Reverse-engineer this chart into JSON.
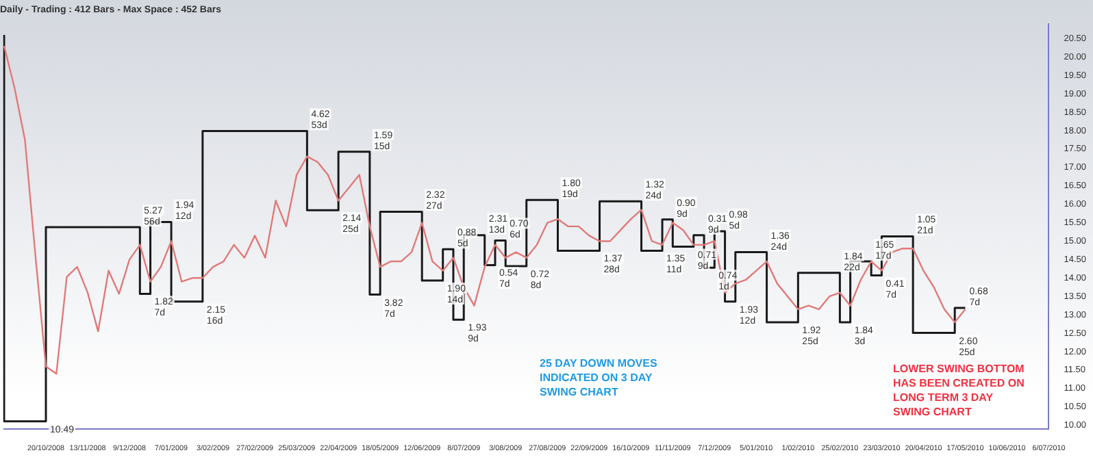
{
  "chart_data": {
    "type": "line",
    "title": "Daily - Trading : 412 Bars - Max Space : 452 Bars",
    "categories": [
      null,
      null,
      null,
      null,
      "20/10/2008",
      null,
      null,
      null,
      "13/11/2008",
      null,
      null,
      null,
      "9/12/2008",
      null,
      null,
      null,
      "7/01/2009",
      null,
      null,
      null,
      "3/02/2009",
      null,
      null,
      null,
      "27/02/2009",
      null,
      null,
      null,
      "25/03/2009",
      null,
      null,
      null,
      "22/04/2009",
      null,
      null,
      null,
      "18/05/2009",
      null,
      null,
      null,
      "12/06/2009",
      null,
      null,
      null,
      "8/07/2009",
      null,
      null,
      null,
      "3/08/2009",
      null,
      null,
      null,
      "27/08/2009",
      null,
      null,
      null,
      "22/09/2009",
      null,
      null,
      null,
      "16/10/2009",
      null,
      null,
      null,
      "11/11/2009",
      null,
      null,
      null,
      "7/12/2009",
      null,
      null,
      null,
      "5/01/2010",
      null,
      null,
      null,
      "1/02/2010",
      null,
      null,
      null,
      "25/02/2010",
      null,
      null,
      null,
      "23/03/2010",
      null,
      null,
      null,
      "20/04/2010",
      null,
      null,
      null,
      "17/05/2010",
      null,
      null,
      null,
      "10/06/2010",
      null,
      null,
      null,
      "6/07/2010"
    ],
    "series": [
      {
        "type": "line",
        "color": "#e07a7a",
        "values": [
          20.3,
          19.16,
          17.74,
          14.6,
          11.6,
          11.4,
          14.03,
          14.3,
          13.6,
          12.55,
          14.2,
          13.57,
          14.5,
          14.9,
          13.9,
          14.3,
          15.0,
          13.9,
          14.0,
          14.0,
          14.3,
          14.45,
          14.9,
          14.55,
          15.15,
          14.55,
          16.1,
          15.4,
          16.8,
          17.3,
          17.15,
          16.8,
          16.1,
          16.45,
          16.8,
          15.4,
          14.3,
          14.45,
          14.45,
          14.7,
          15.5,
          14.45,
          14.2,
          14.55,
          13.75,
          13.25,
          14.3,
          14.9,
          14.55,
          14.7,
          14.55,
          14.9,
          15.5,
          15.6,
          15.4,
          15.4,
          15.15,
          15.0,
          15.0,
          15.3,
          15.6,
          15.85,
          15.0,
          14.9,
          15.5,
          15.3,
          14.9,
          14.9,
          15.0,
          13.6,
          13.85,
          13.95,
          14.2,
          14.45,
          13.85,
          13.5,
          13.15,
          13.25,
          13.15,
          13.5,
          13.6,
          13.25,
          13.95,
          14.45,
          14.2,
          14.7,
          14.8,
          14.8,
          14.2,
          13.75,
          13.15,
          12.8,
          13.15,
          null,
          null,
          null,
          null,
          null,
          null,
          null,
          null
        ]
      },
      {
        "type": "step",
        "color": "#1a1a1a",
        "values": [
          20.6,
          null,
          null,
          null,
          10.11,
          null,
          null,
          null,
          null,
          null,
          null,
          null,
          null,
          15.38,
          13.57,
          null,
          15.52,
          null,
          null,
          13.36,
          null,
          null,
          null,
          null,
          null,
          null,
          null,
          null,
          null,
          17.99,
          null,
          null,
          15.84,
          null,
          null,
          17.43,
          13.55,
          null,
          null,
          null,
          15.8,
          null,
          13.93,
          14.78,
          12.87,
          null,
          15.16,
          14.35,
          15.02,
          null,
          14.32,
          null,
          null,
          16.12,
          null,
          null,
          null,
          14.74,
          null,
          null,
          null,
          16.08,
          null,
          14.74,
          15.59,
          null,
          14.85,
          15.16,
          14.28,
          15.27,
          13.36,
          null,
          null,
          14.7,
          null,
          null,
          12.8,
          null,
          null,
          null,
          14.14,
          12.8,
          null,
          14.45,
          14.07,
          null,
          null,
          15.13,
          null,
          null,
          null,
          12.51,
          13.19,
          null,
          null,
          null,
          null,
          null,
          null,
          null,
          null
        ]
      }
    ],
    "ylim": [
      9.9,
      20.9
    ],
    "yticks": [
      {
        "value": 10,
        "label": "10.00"
      },
      {
        "value": 10.5,
        "label": "10.50"
      },
      {
        "value": 11,
        "label": "11.00"
      },
      {
        "value": 11.5,
        "label": "11.50"
      },
      {
        "value": 12,
        "label": "12.00"
      },
      {
        "value": 12.5,
        "label": "12.50"
      },
      {
        "value": 13,
        "label": "13.00"
      },
      {
        "value": 13.5,
        "label": "13.50"
      },
      {
        "value": 14,
        "label": "14.00"
      },
      {
        "value": 14.5,
        "label": "14.50"
      },
      {
        "value": 15,
        "label": "15.00"
      },
      {
        "value": 15.5,
        "label": "15.50"
      },
      {
        "value": 16,
        "label": "16.00"
      },
      {
        "value": 16.5,
        "label": "16.50"
      },
      {
        "value": 17,
        "label": "17.00"
      },
      {
        "value": 17.5,
        "label": "17.50"
      },
      {
        "value": 18,
        "label": "18.00"
      },
      {
        "value": 18.5,
        "label": "18.50"
      },
      {
        "value": 19,
        "label": "19.00"
      },
      {
        "value": 19.5,
        "label": "19.50"
      },
      {
        "value": 20,
        "label": "20.00"
      },
      {
        "value": 20.5,
        "label": "20.50"
      }
    ],
    "grid": false,
    "legend": false,
    "marker": "none",
    "annotations": [
      "10.49",
      "5.27\n56d",
      "1.82\n7d",
      "1.94\n12d",
      "2.15\n16d",
      "4.62\n53d",
      "2.14\n25d",
      "1.59\n15d",
      "3.82\n7d",
      "2.32\n27d",
      "1.90\n14d",
      "0.88\n5d",
      "1.93\n9d",
      "2.31\n13d",
      "0.54\n7d",
      "0.70\n6d",
      "0.72\n8d",
      "1.80\n19d",
      "1.37\n28d",
      "1.32\n24d",
      "1.35\n11d",
      "0.90\n9d",
      "0.71\n9d",
      "0.31\n9d",
      "0.74\n1d",
      "0.98\n5d",
      "1.93\n12d",
      "1.36\n24d",
      "1.92\n25d",
      "1.84\n22d",
      "1.84\n3d",
      "1.65\n17d",
      "0.41\n7d",
      "1.05\n21d",
      "2.60\n25d",
      "0.68\n7d",
      "25 DAY DOWN MOVES\nINDICATED ON 3 DAY\nSWING CHART",
      "LOWER SWING BOTTOM\nHAS BEEN CREATED ON\nLONG TERM 3 DAY\nSWING CHART"
    ]
  }
}
